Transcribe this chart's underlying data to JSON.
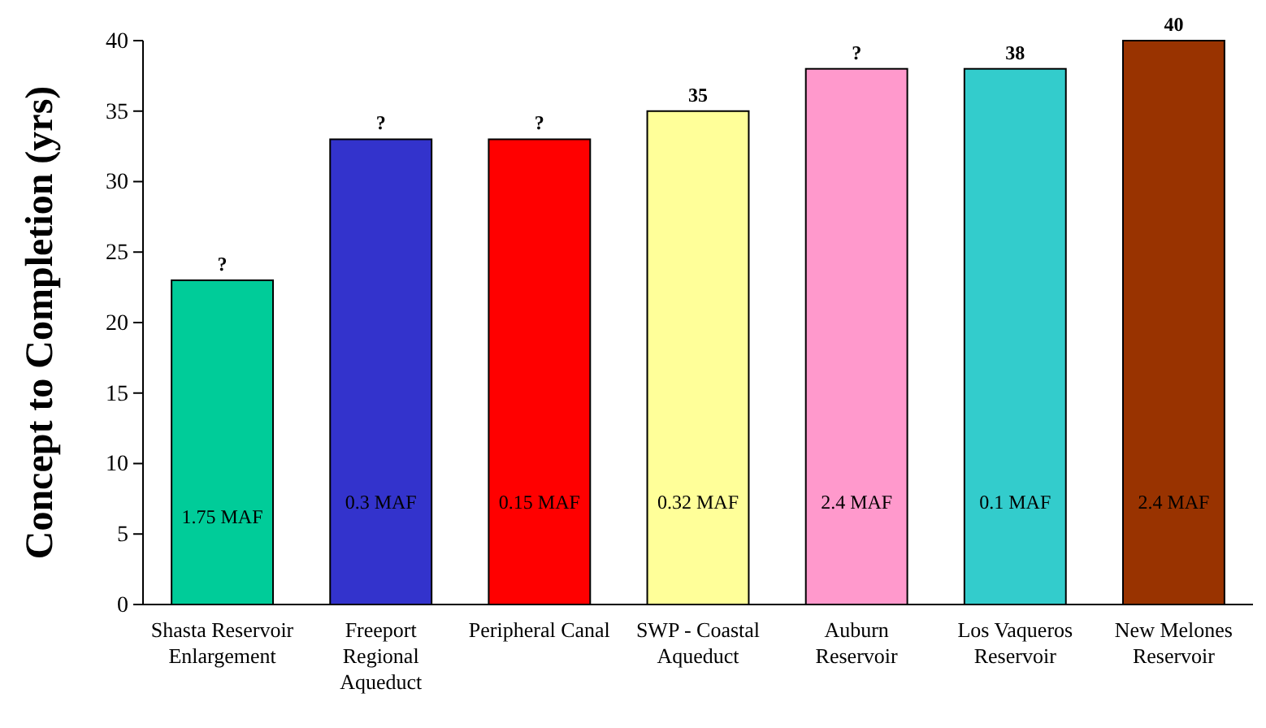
{
  "chart_data": {
    "type": "bar",
    "ylabel": "Concept to Completion (yrs)",
    "categories": [
      "Shasta Reservoir Enlargement",
      "Freeport Regional Aqueduct",
      "Peripheral Canal",
      "SWP - Coastal Aqueduct",
      "Auburn Reservoir",
      "Los Vaqueros Reservoir",
      "New Melones Reservoir"
    ],
    "values": [
      23,
      33,
      33,
      35,
      38,
      38,
      40
    ],
    "value_labels": [
      "?",
      "?",
      "?",
      "35",
      "?",
      "38",
      "40"
    ],
    "colors": [
      "#00cc99",
      "#3333cc",
      "#ff0000",
      "#ffff99",
      "#ff99cc",
      "#33cccc",
      "#993300"
    ],
    "ylim": [
      0,
      40
    ],
    "yticks": [
      0,
      5,
      10,
      15,
      20,
      25,
      30,
      35,
      40
    ],
    "grid": false,
    "annotations": [
      "1.75 MAF",
      "0.3 MAF",
      "0.15 MAF",
      "0.32 MAF",
      "2.4 MAF",
      "0.1 MAF",
      "2.4 MAF"
    ]
  }
}
